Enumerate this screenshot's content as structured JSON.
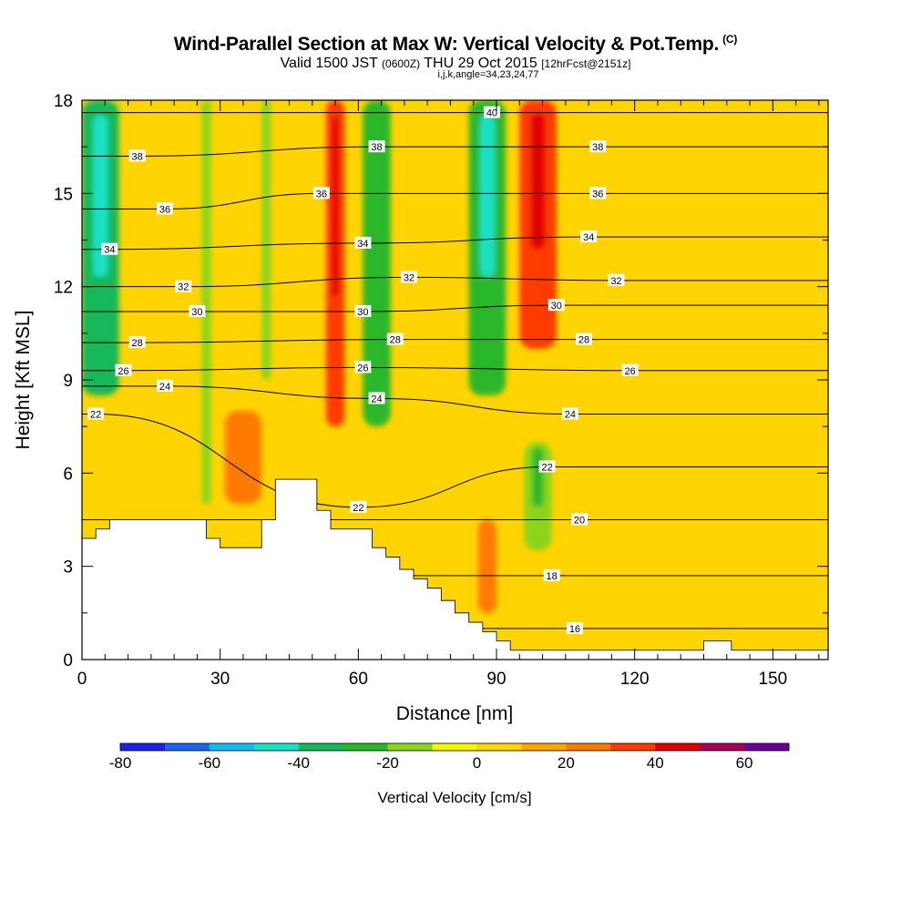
{
  "header": {
    "title": "Wind-Parallel Section at Max W: Vertical Velocity & Pot.Temp.",
    "copyright": "(C)",
    "valid_prefix": "Valid 1500 JST ",
    "valid_z": "(0600Z)",
    "valid_date": " THU 29 Oct 2015 ",
    "forecast": "[12hrFcst@2151z]",
    "indices": "i,j,k,angle=34,23,24,77"
  },
  "chart_data": {
    "type": "heatmap",
    "xlabel": "Distance [nm]",
    "ylabel": "Height [Kft MSL]",
    "xlim": [
      0,
      162
    ],
    "ylim": [
      0,
      18
    ],
    "x_ticks": [
      0,
      30,
      60,
      90,
      120,
      150
    ],
    "y_ticks": [
      0,
      3,
      6,
      9,
      12,
      15,
      18
    ],
    "colorbar": {
      "label": "Vertical Velocity [cm/s]",
      "tick_labels": [
        -80,
        -60,
        -40,
        -20,
        0,
        20,
        40,
        60
      ],
      "bounds": [
        -80,
        70
      ],
      "step": 10,
      "colors": [
        "#1f1fe8",
        "#1a66f0",
        "#12bff5",
        "#1ae0c4",
        "#14b85a",
        "#29b829",
        "#8cd41a",
        "#f5f500",
        "#ffd400",
        "#ffa500",
        "#ff7a00",
        "#ff3a00",
        "#e00000",
        "#a8005a",
        "#6a0096"
      ]
    },
    "velocity_features": [
      {
        "x_center": 4,
        "half_width": 4,
        "y_bottom": 8.5,
        "y_top": 18,
        "value": -40,
        "core_value": -50
      },
      {
        "x_center": 27,
        "half_width": 1,
        "y_bottom": 5.0,
        "y_top": 18,
        "value": -20
      },
      {
        "x_center": 40,
        "half_width": 1,
        "y_bottom": 9.0,
        "y_top": 18,
        "value": -20
      },
      {
        "x_center": 55,
        "half_width": 2,
        "y_bottom": 7.5,
        "y_top": 18,
        "value": 30,
        "core_value": 40
      },
      {
        "x_center": 64,
        "half_width": 3,
        "y_bottom": 7.5,
        "y_top": 18,
        "value": -30
      },
      {
        "x_center": 88,
        "half_width": 4,
        "y_bottom": 8.5,
        "y_top": 18,
        "value": -30,
        "core_value": -50
      },
      {
        "x_center": 99,
        "half_width": 4,
        "y_bottom": 10.0,
        "y_top": 18,
        "value": 30,
        "core_value": 40
      },
      {
        "x_center": 99,
        "half_width": 3,
        "y_bottom": 3.5,
        "y_top": 7.0,
        "value": -20,
        "core_value": -30
      },
      {
        "x_center": 35,
        "half_width": 4,
        "y_bottom": 5.0,
        "y_top": 8.0,
        "value": 20
      },
      {
        "x_center": 88,
        "half_width": 2,
        "y_bottom": 1.5,
        "y_top": 4.5,
        "value": 20
      }
    ],
    "contour_labels": [
      {
        "value": "38",
        "x": 12,
        "y": 16.2
      },
      {
        "value": "36",
        "x": 18,
        "y": 14.5
      },
      {
        "value": "34",
        "x": 6,
        "y": 13.2
      },
      {
        "value": "32",
        "x": 22,
        "y": 12.0
      },
      {
        "value": "30",
        "x": 25,
        "y": 11.2
      },
      {
        "value": "28",
        "x": 12,
        "y": 10.2
      },
      {
        "value": "26",
        "x": 9,
        "y": 9.3
      },
      {
        "value": "24",
        "x": 18,
        "y": 8.8
      },
      {
        "value": "22",
        "x": 3,
        "y": 7.9
      },
      {
        "value": "38",
        "x": 64,
        "y": 16.5
      },
      {
        "value": "36",
        "x": 52,
        "y": 15.0
      },
      {
        "value": "34",
        "x": 61,
        "y": 13.4
      },
      {
        "value": "32",
        "x": 71,
        "y": 12.3
      },
      {
        "value": "30",
        "x": 61,
        "y": 11.2
      },
      {
        "value": "28",
        "x": 68,
        "y": 10.3
      },
      {
        "value": "26",
        "x": 61,
        "y": 9.4
      },
      {
        "value": "24",
        "x": 64,
        "y": 8.4
      },
      {
        "value": "22",
        "x": 60,
        "y": 4.9
      },
      {
        "value": "40",
        "x": 89,
        "y": 17.6
      },
      {
        "value": "38",
        "x": 112,
        "y": 16.5
      },
      {
        "value": "36",
        "x": 112,
        "y": 15.0
      },
      {
        "value": "34",
        "x": 110,
        "y": 13.6
      },
      {
        "value": "32",
        "x": 116,
        "y": 12.2
      },
      {
        "value": "30",
        "x": 103,
        "y": 11.4
      },
      {
        "value": "28",
        "x": 109,
        "y": 10.3
      },
      {
        "value": "26",
        "x": 119,
        "y": 9.3
      },
      {
        "value": "24",
        "x": 106,
        "y": 7.9
      },
      {
        "value": "22",
        "x": 101,
        "y": 6.2
      },
      {
        "value": "20",
        "x": 108,
        "y": 4.5
      },
      {
        "value": "18",
        "x": 102,
        "y": 2.7
      },
      {
        "value": "16",
        "x": 107,
        "y": 1.0
      }
    ]
  }
}
